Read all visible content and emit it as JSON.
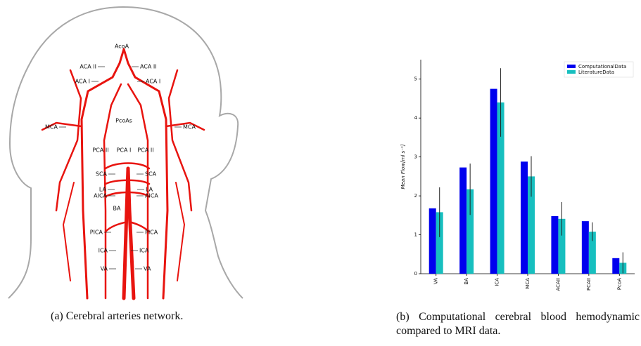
{
  "diagram": {
    "labels": [
      "AcoA",
      "ACA II",
      "ACA II",
      "ACA I",
      "ACA I",
      "MCA",
      "MCA",
      "PcoAs",
      "PCA II",
      "PCA I",
      "PCA II",
      "SCA",
      "SCA",
      "LA",
      "LA",
      "AICA",
      "AICA",
      "BA",
      "PICA",
      "PICA",
      "ICA",
      "ICA",
      "VA",
      "VA"
    ],
    "caption": "(a) Cerebral arteries network."
  },
  "chart_caption": "(b) Computational cerebral blood hemodynamic compared to MRI data.",
  "chart_data": {
    "type": "bar",
    "ylabel": "Mean Flow[ml s⁻¹]",
    "categories": [
      "VA",
      "BA",
      "ICA",
      "MCA",
      "ACAII",
      "PCAII",
      "PcoA"
    ],
    "series": [
      {
        "name": "ComputationalData",
        "color": "#0000ee",
        "values": [
          1.68,
          2.73,
          4.75,
          2.88,
          1.48,
          1.35,
          0.4
        ]
      },
      {
        "name": "LiteratureData",
        "color": "#17bfbf",
        "values": [
          1.58,
          2.17,
          4.4,
          2.5,
          1.41,
          1.08,
          0.28
        ],
        "errors": [
          0.64,
          0.66,
          0.88,
          0.52,
          0.43,
          0.24,
          0.27
        ]
      }
    ],
    "ylim": [
      0,
      5.5
    ],
    "yticks": [
      0,
      1,
      2,
      3,
      4,
      5
    ],
    "legend": "upper right"
  }
}
